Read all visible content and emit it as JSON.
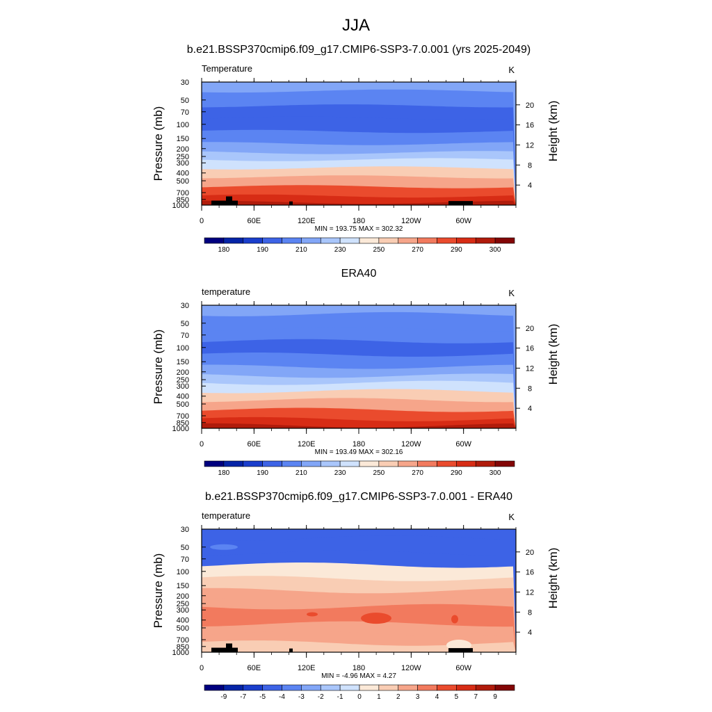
{
  "figure": {
    "title": "JJA"
  },
  "chart_data": [
    {
      "type": "heatmap",
      "panel_title": "b.e21.BSSP370cmip6.f09_g17.CMIP6-SSP3-7.0.001 (yrs 2025-2049)",
      "variable_label": "Temperature",
      "units": "K",
      "ylabel_left": "Pressure (mb)",
      "ylabel_right": "Height (km)",
      "pressure_ticks": [
        "30",
        "50",
        "70",
        "100",
        "150",
        "200",
        "250",
        "300",
        "400",
        "500",
        "700",
        "850",
        "1000"
      ],
      "height_ticks": [
        "4",
        "8",
        "12",
        "16",
        "20"
      ],
      "x_ticks": [
        "0",
        "60E",
        "120E",
        "180",
        "120W",
        "60W"
      ],
      "stats": "MIN = 193.75  MAX = 302.32",
      "min": 193.75,
      "max": 302.32,
      "colorbar_labels": [
        "180",
        "190",
        "210",
        "230",
        "250",
        "270",
        "290",
        "300"
      ],
      "colors": [
        "#00007f",
        "#0524a7",
        "#1a3ecc",
        "#3d63e6",
        "#5b84f2",
        "#82a6f7",
        "#a9c6fb",
        "#cfe2fd",
        "#fbe9d8",
        "#f9cdb4",
        "#f6a58a",
        "#f27a5e",
        "#ea4b2d",
        "#d72c15",
        "#b01b0b",
        "#830606"
      ],
      "profile": [
        {
          "p": 30,
          "level": 5
        },
        {
          "p": 50,
          "level": 4
        },
        {
          "p": 70,
          "level": 3
        },
        {
          "p": 100,
          "level": 3
        },
        {
          "p": 150,
          "level": 4
        },
        {
          "p": 200,
          "level": 5
        },
        {
          "p": 250,
          "level": 6
        },
        {
          "p": 300,
          "level": 7
        },
        {
          "p": 400,
          "level": 9
        },
        {
          "p": 500,
          "level": 10
        },
        {
          "p": 700,
          "level": 12
        },
        {
          "p": 850,
          "level": 13
        },
        {
          "p": 1000,
          "level": 14
        }
      ],
      "topography": true
    },
    {
      "type": "heatmap",
      "panel_title": "ERA40",
      "variable_label": "temperature",
      "units": "K",
      "ylabel_left": "Pressure (mb)",
      "ylabel_right": "Height (km)",
      "pressure_ticks": [
        "30",
        "50",
        "70",
        "100",
        "150",
        "200",
        "250",
        "300",
        "400",
        "500",
        "700",
        "850",
        "1000"
      ],
      "height_ticks": [
        "4",
        "8",
        "12",
        "16",
        "20"
      ],
      "x_ticks": [
        "0",
        "60E",
        "120E",
        "180",
        "120W",
        "60W"
      ],
      "stats": "MIN = 193.49  MAX = 302.16",
      "min": 193.49,
      "max": 302.16,
      "colorbar_labels": [
        "180",
        "190",
        "210",
        "230",
        "250",
        "270",
        "290",
        "300"
      ],
      "colors": [
        "#00007f",
        "#0524a7",
        "#1a3ecc",
        "#3d63e6",
        "#5b84f2",
        "#82a6f7",
        "#a9c6fb",
        "#cfe2fd",
        "#fbe9d8",
        "#f9cdb4",
        "#f6a58a",
        "#f27a5e",
        "#ea4b2d",
        "#d72c15",
        "#b01b0b",
        "#830606"
      ],
      "profile": [
        {
          "p": 30,
          "level": 5
        },
        {
          "p": 50,
          "level": 4
        },
        {
          "p": 70,
          "level": 4
        },
        {
          "p": 100,
          "level": 3
        },
        {
          "p": 150,
          "level": 4
        },
        {
          "p": 200,
          "level": 5
        },
        {
          "p": 250,
          "level": 6
        },
        {
          "p": 300,
          "level": 7
        },
        {
          "p": 400,
          "level": 9
        },
        {
          "p": 500,
          "level": 10
        },
        {
          "p": 700,
          "level": 12
        },
        {
          "p": 850,
          "level": 13
        },
        {
          "p": 1000,
          "level": 14
        }
      ],
      "topography": false
    },
    {
      "type": "heatmap",
      "panel_title": "b.e21.BSSP370cmip6.f09_g17.CMIP6-SSP3-7.0.001 - ERA40",
      "variable_label": "temperature",
      "units": "K",
      "ylabel_left": "Pressure (mb)",
      "ylabel_right": "Height (km)",
      "pressure_ticks": [
        "30",
        "50",
        "70",
        "100",
        "150",
        "200",
        "250",
        "300",
        "400",
        "500",
        "700",
        "850",
        "1000"
      ],
      "height_ticks": [
        "4",
        "8",
        "12",
        "16",
        "20"
      ],
      "x_ticks": [
        "0",
        "60E",
        "120E",
        "180",
        "120W",
        "60W"
      ],
      "stats": "MIN = -4.96  MAX =  4.27",
      "min": -4.96,
      "max": 4.27,
      "colorbar_labels": [
        "-9",
        "-7",
        "-5",
        "-4",
        "-3",
        "-2",
        "-1",
        "0",
        "1",
        "2",
        "3",
        "4",
        "5",
        "7",
        "9"
      ],
      "colors": [
        "#00007f",
        "#0524a7",
        "#1a3ecc",
        "#3d63e6",
        "#5b84f2",
        "#82a6f7",
        "#a9c6fb",
        "#cfe2fd",
        "#fbe9d8",
        "#f9cdb4",
        "#f6a58a",
        "#f27a5e",
        "#ea4b2d",
        "#d72c15",
        "#b01b0b",
        "#830606"
      ],
      "profile": [
        {
          "p": 30,
          "level": 3
        },
        {
          "p": 50,
          "level": 3
        },
        {
          "p": 70,
          "level": 3
        },
        {
          "p": 100,
          "level": 8
        },
        {
          "p": 150,
          "level": 9
        },
        {
          "p": 200,
          "level": 10
        },
        {
          "p": 250,
          "level": 10
        },
        {
          "p": 300,
          "level": 11
        },
        {
          "p": 400,
          "level": 11
        },
        {
          "p": 500,
          "level": 10
        },
        {
          "p": 700,
          "level": 10
        },
        {
          "p": 850,
          "level": 9
        },
        {
          "p": 1000,
          "level": 9
        }
      ],
      "topography": true
    }
  ]
}
